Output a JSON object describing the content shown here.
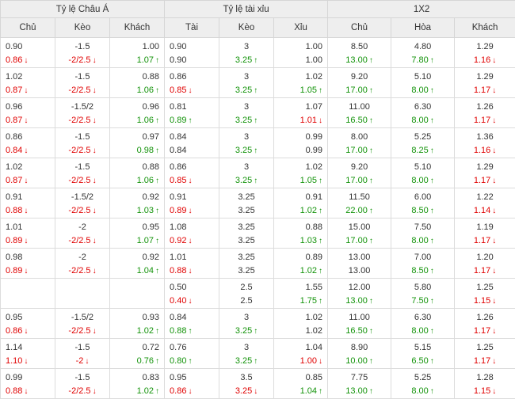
{
  "headers": {
    "group1": "Tỷ lệ Châu Á",
    "group2": "Tỷ lệ tài xỉu",
    "group3": "1X2",
    "sub": [
      "Chủ",
      "Kèo",
      "Khách",
      "Tài",
      "Kèo",
      "Xỉu",
      "Chủ",
      "Hòa",
      "Khách"
    ]
  },
  "rows": [
    [
      [
        "0.90",
        "",
        "0.86",
        "down"
      ],
      [
        "-1.5",
        "",
        "-2/2.5",
        "down"
      ],
      [
        "1.00",
        "",
        "1.07",
        "up"
      ],
      [
        "0.90",
        "",
        "0.90",
        ""
      ],
      [
        "3",
        "",
        "3.25",
        "up"
      ],
      [
        "1.00",
        "",
        "1.00",
        ""
      ],
      [
        "8.50",
        "",
        "13.00",
        "up"
      ],
      [
        "4.80",
        "",
        "7.80",
        "up"
      ],
      [
        "1.29",
        "",
        "1.16",
        "down"
      ]
    ],
    [
      [
        "1.02",
        "",
        "0.87",
        "down"
      ],
      [
        "-1.5",
        "",
        "-2/2.5",
        "down"
      ],
      [
        "0.88",
        "",
        "1.06",
        "up"
      ],
      [
        "0.86",
        "",
        "0.85",
        "down"
      ],
      [
        "3",
        "",
        "3.25",
        "up"
      ],
      [
        "1.02",
        "",
        "1.05",
        "up"
      ],
      [
        "9.20",
        "",
        "17.00",
        "up"
      ],
      [
        "5.10",
        "",
        "8.00",
        "up"
      ],
      [
        "1.29",
        "",
        "1.17",
        "down"
      ]
    ],
    [
      [
        "0.96",
        "",
        "0.87",
        "down"
      ],
      [
        "-1.5/2",
        "",
        "-2/2.5",
        "down"
      ],
      [
        "0.96",
        "",
        "1.06",
        "up"
      ],
      [
        "0.81",
        "",
        "0.89",
        "up"
      ],
      [
        "3",
        "",
        "3.25",
        "up"
      ],
      [
        "1.07",
        "",
        "1.01",
        "down"
      ],
      [
        "11.00",
        "",
        "16.50",
        "up"
      ],
      [
        "6.30",
        "",
        "8.00",
        "up"
      ],
      [
        "1.26",
        "",
        "1.17",
        "down"
      ]
    ],
    [
      [
        "0.86",
        "",
        "0.84",
        "down"
      ],
      [
        "-1.5",
        "",
        "-2/2.5",
        "down"
      ],
      [
        "0.97",
        "",
        "0.98",
        "up"
      ],
      [
        "0.84",
        "",
        "0.84",
        ""
      ],
      [
        "3",
        "",
        "3.25",
        "up"
      ],
      [
        "0.99",
        "",
        "0.99",
        ""
      ],
      [
        "8.00",
        "",
        "17.00",
        "up"
      ],
      [
        "5.25",
        "",
        "8.25",
        "up"
      ],
      [
        "1.36",
        "",
        "1.16",
        "down"
      ]
    ],
    [
      [
        "1.02",
        "",
        "0.87",
        "down"
      ],
      [
        "-1.5",
        "",
        "-2/2.5",
        "down"
      ],
      [
        "0.88",
        "",
        "1.06",
        "up"
      ],
      [
        "0.86",
        "",
        "0.85",
        "down"
      ],
      [
        "3",
        "",
        "3.25",
        "up"
      ],
      [
        "1.02",
        "",
        "1.05",
        "up"
      ],
      [
        "9.20",
        "",
        "17.00",
        "up"
      ],
      [
        "5.10",
        "",
        "8.00",
        "up"
      ],
      [
        "1.29",
        "",
        "1.17",
        "down"
      ]
    ],
    [
      [
        "0.91",
        "",
        "0.88",
        "down"
      ],
      [
        "-1.5/2",
        "",
        "-2/2.5",
        "down"
      ],
      [
        "0.92",
        "",
        "1.03",
        "up"
      ],
      [
        "0.91",
        "",
        "0.89",
        "down"
      ],
      [
        "3.25",
        "",
        "3.25",
        ""
      ],
      [
        "0.91",
        "",
        "1.02",
        "up"
      ],
      [
        "11.50",
        "",
        "22.00",
        "up"
      ],
      [
        "6.00",
        "",
        "8.50",
        "up"
      ],
      [
        "1.22",
        "",
        "1.14",
        "down"
      ]
    ],
    [
      [
        "1.01",
        "",
        "0.89",
        "down"
      ],
      [
        "-2",
        "",
        "-2/2.5",
        "down"
      ],
      [
        "0.95",
        "",
        "1.07",
        "up"
      ],
      [
        "1.08",
        "",
        "0.92",
        "down"
      ],
      [
        "3.25",
        "",
        "3.25",
        ""
      ],
      [
        "0.88",
        "",
        "1.03",
        "up"
      ],
      [
        "15.00",
        "",
        "17.00",
        "up"
      ],
      [
        "7.50",
        "",
        "8.00",
        "up"
      ],
      [
        "1.19",
        "",
        "1.17",
        "down"
      ]
    ],
    [
      [
        "0.98",
        "",
        "0.89",
        "down"
      ],
      [
        "-2",
        "",
        "-2/2.5",
        "down"
      ],
      [
        "0.92",
        "",
        "1.04",
        "up"
      ],
      [
        "1.01",
        "",
        "0.88",
        "down"
      ],
      [
        "3.25",
        "",
        "3.25",
        ""
      ],
      [
        "0.89",
        "",
        "1.02",
        "up"
      ],
      [
        "13.00",
        "",
        "13.00",
        ""
      ],
      [
        "7.00",
        "",
        "8.50",
        "up"
      ],
      [
        "1.20",
        "",
        "1.17",
        "down"
      ]
    ],
    [
      [
        "",
        "",
        "",
        ""
      ],
      [
        "",
        "",
        "",
        ""
      ],
      [
        "",
        "",
        "",
        ""
      ],
      [
        "0.50",
        "",
        "0.40",
        "down"
      ],
      [
        "2.5",
        "",
        "2.5",
        ""
      ],
      [
        "1.55",
        "",
        "1.75",
        "up"
      ],
      [
        "12.00",
        "",
        "13.00",
        "up"
      ],
      [
        "5.80",
        "",
        "7.50",
        "up"
      ],
      [
        "1.25",
        "",
        "1.15",
        "down"
      ]
    ],
    [
      [
        "0.95",
        "",
        "0.86",
        "down"
      ],
      [
        "-1.5/2",
        "",
        "-2/2.5",
        "down"
      ],
      [
        "0.93",
        "",
        "1.02",
        "up"
      ],
      [
        "0.84",
        "",
        "0.88",
        "up"
      ],
      [
        "3",
        "",
        "3.25",
        "up"
      ],
      [
        "1.02",
        "",
        "1.02",
        ""
      ],
      [
        "11.00",
        "",
        "16.50",
        "up"
      ],
      [
        "6.30",
        "",
        "8.00",
        "up"
      ],
      [
        "1.26",
        "",
        "1.17",
        "down"
      ]
    ],
    [
      [
        "1.14",
        "",
        "1.10",
        "down"
      ],
      [
        "-1.5",
        "",
        "-2",
        "down"
      ],
      [
        "0.72",
        "",
        "0.76",
        "up"
      ],
      [
        "0.76",
        "",
        "0.80",
        "up"
      ],
      [
        "3",
        "",
        "3.25",
        "up"
      ],
      [
        "1.04",
        "",
        "1.00",
        "down"
      ],
      [
        "8.90",
        "",
        "10.00",
        "up"
      ],
      [
        "5.15",
        "",
        "6.50",
        "up"
      ],
      [
        "1.25",
        "",
        "1.17",
        "down"
      ]
    ],
    [
      [
        "0.99",
        "",
        "0.88",
        "down"
      ],
      [
        "-1.5",
        "",
        "-2/2.5",
        "down"
      ],
      [
        "0.83",
        "",
        "1.02",
        "up"
      ],
      [
        "0.95",
        "",
        "0.86",
        "down"
      ],
      [
        "3.5",
        "",
        "3.25",
        "down"
      ],
      [
        "0.85",
        "",
        "1.04",
        "up"
      ],
      [
        "7.75",
        "",
        "13.00",
        "up"
      ],
      [
        "5.25",
        "",
        "8.00",
        "up"
      ],
      [
        "1.28",
        "",
        "1.15",
        "down"
      ]
    ]
  ],
  "arrows": {
    "up": "↑",
    "down": "↓"
  },
  "colors": {
    "up": "#13930a",
    "down": "#e00000",
    "header_bg": "#eeeeee",
    "border": "#dcdcdc"
  }
}
